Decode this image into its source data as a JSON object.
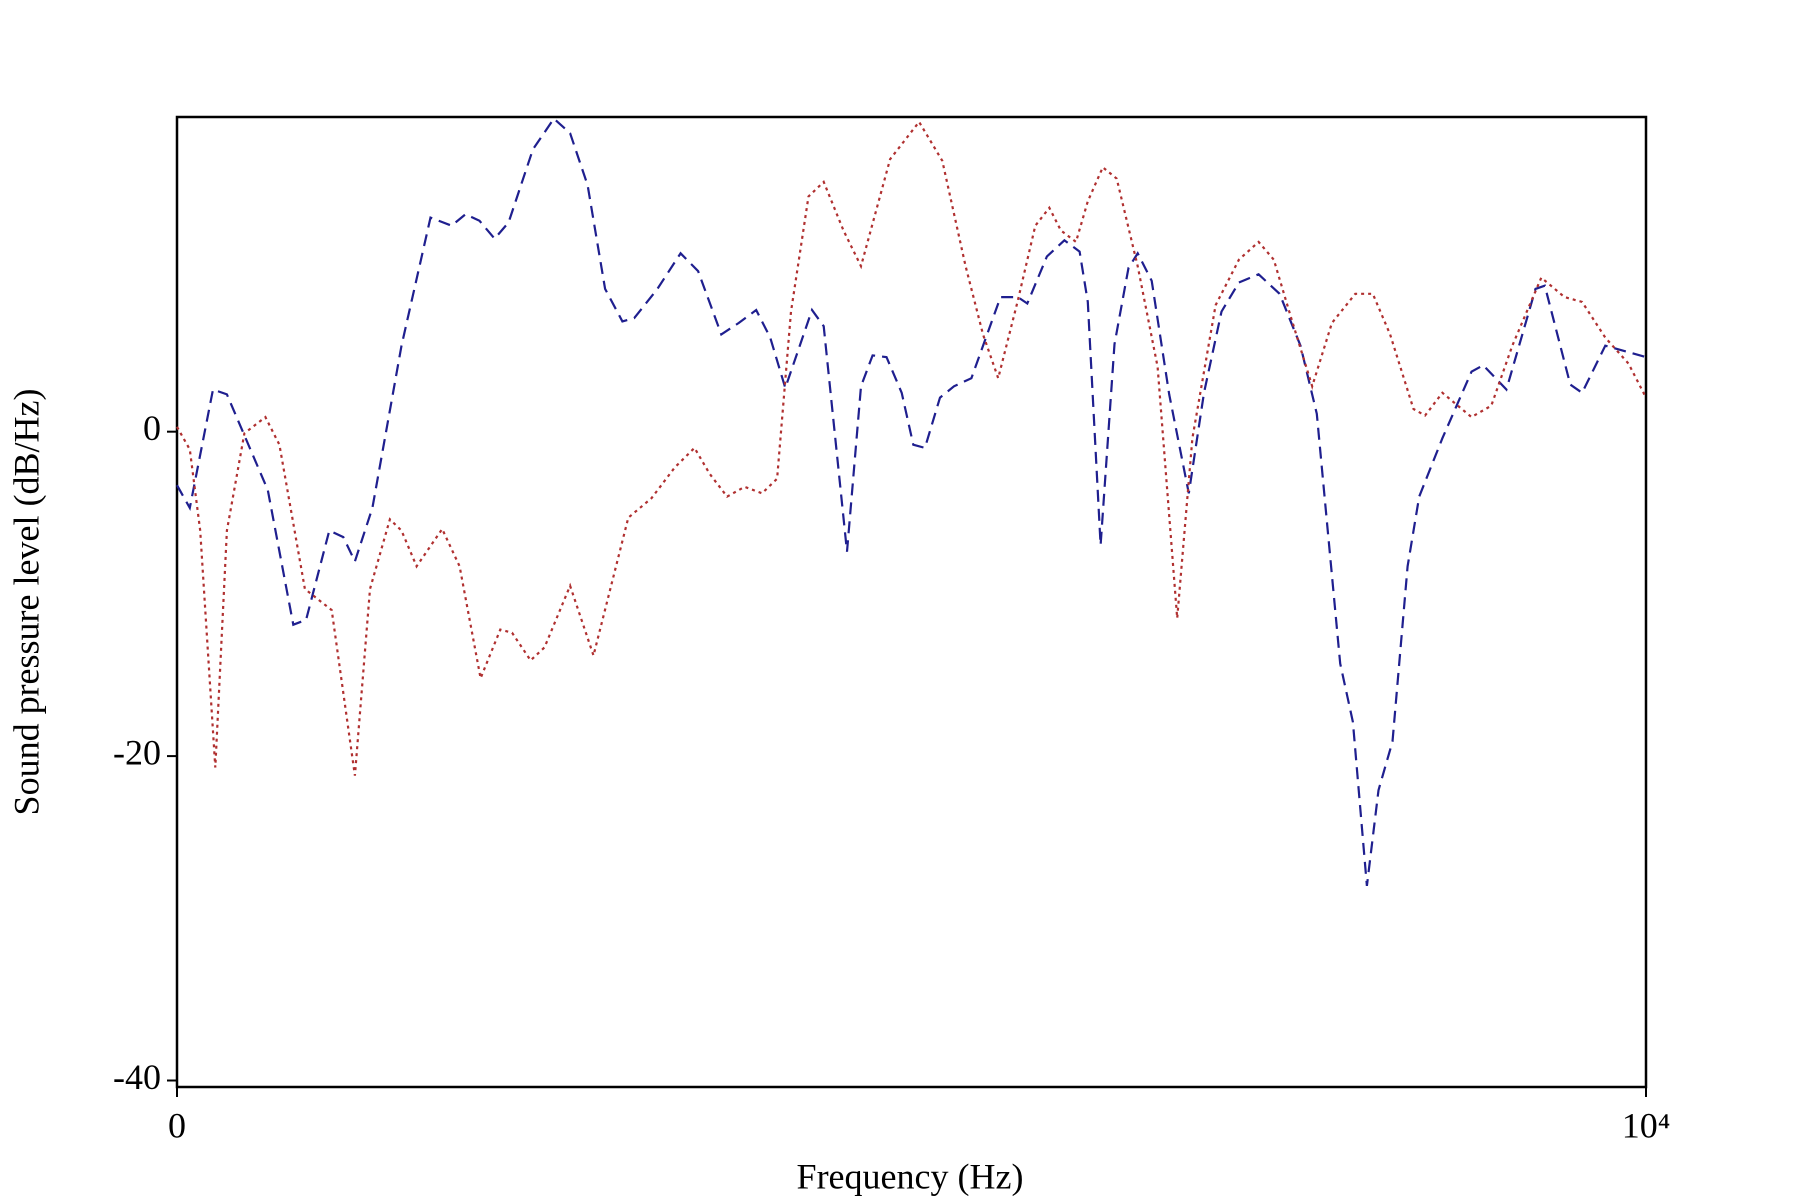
{
  "chart_data": {
    "type": "line",
    "xlabel": "Frequency (Hz)",
    "ylabel": "Sound pressure level (dB/Hz)",
    "xlim": [
      0,
      10000
    ],
    "xticks": [
      0,
      {
        "value": 10000,
        "label": "10⁴"
      }
    ],
    "ylim": [
      -40.4,
      19.4
    ],
    "yticks": [
      -40,
      -20,
      0
    ],
    "x": [],
    "series": [
      {
        "color": "#1f1f8f",
        "linestyle": "dashed",
        "x": [
          0,
          87,
          245,
          340,
          618,
          792,
          879,
          1037,
          1132,
          1211,
          1330,
          1528,
          1726,
          1869,
          1964,
          2059,
          2162,
          2257,
          2423,
          2566,
          2676,
          2795,
          2914,
          3032,
          3112,
          3270,
          3428,
          3547,
          3705,
          3824,
          3943,
          4038,
          4141,
          4323,
          4402,
          4561,
          4656,
          4735,
          4830,
          4933,
          5012,
          5091,
          5194,
          5289,
          5408,
          5606,
          5724,
          5788,
          5922,
          6041,
          6144,
          6200,
          6287,
          6382,
          6477,
          6540,
          6635,
          6754,
          6888,
          6991,
          7110,
          7229,
          7363,
          7506,
          7648,
          7759,
          7918,
          8005,
          8100,
          8179,
          8274,
          8377,
          8456,
          8614,
          8812,
          8892,
          9050,
          9248,
          9311,
          9485,
          9565,
          9723,
          9881,
          10000
        ],
        "values": [
          -3.3,
          -4.7,
          2.6,
          2.3,
          -3.6,
          -11.9,
          -11.6,
          -6.1,
          -6.5,
          -8.0,
          -4.7,
          5.3,
          13.2,
          12.7,
          13.4,
          13.0,
          11.9,
          12.9,
          17.4,
          19.3,
          18.4,
          15.2,
          8.8,
          6.8,
          7.0,
          8.8,
          11.0,
          9.9,
          6.0,
          6.7,
          7.5,
          5.8,
          2.7,
          7.5,
          6.5,
          -7.4,
          2.8,
          4.7,
          4.6,
          2.4,
          -0.8,
          -1.0,
          2.1,
          2.8,
          3.3,
          8.3,
          8.3,
          7.9,
          10.8,
          11.8,
          11.1,
          8.0,
          -7.0,
          5.4,
          10.1,
          11.0,
          9.3,
          2.3,
          -3.8,
          2.4,
          7.4,
          9.2,
          9.7,
          8.5,
          5.3,
          1.1,
          -14.3,
          -17.9,
          -28.0,
          -22.1,
          -19.1,
          -8.3,
          -4.0,
          -0.4,
          3.7,
          4.1,
          2.6,
          8.8,
          9.0,
          2.9,
          2.4,
          5.3,
          4.9,
          4.6
        ]
      },
      {
        "color": "#b03030",
        "linestyle": "dotted",
        "x": [
          0,
          87,
          158,
          261,
          340,
          459,
          602,
          697,
          871,
          1053,
          1211,
          1314,
          1449,
          1528,
          1631,
          1805,
          1924,
          2067,
          2201,
          2281,
          2407,
          2502,
          2676,
          2835,
          3072,
          3230,
          3389,
          3523,
          3626,
          3745,
          3864,
          3982,
          4085,
          4180,
          4299,
          4402,
          4537,
          4656,
          4854,
          5052,
          5210,
          5368,
          5487,
          5590,
          5724,
          5843,
          5938,
          6017,
          6120,
          6200,
          6302,
          6397,
          6540,
          6675,
          6809,
          6912,
          7070,
          7229,
          7363,
          7466,
          7585,
          7728,
          7862,
          8021,
          8140,
          8258,
          8417,
          8496,
          8614,
          8812,
          8947,
          9090,
          9287,
          9445,
          9565,
          9723,
          9881,
          10000
        ],
        "values": [
          0.3,
          -1.1,
          -6.1,
          -20.7,
          -6.1,
          -0.1,
          0.9,
          -0.8,
          -9.7,
          -11.0,
          -21.2,
          -9.7,
          -5.4,
          -6.1,
          -8.3,
          -6.0,
          -8.3,
          -15.2,
          -12.2,
          -12.4,
          -14.1,
          -13.3,
          -9.5,
          -13.8,
          -5.3,
          -4.1,
          -2.2,
          -1.0,
          -2.6,
          -4.0,
          -3.4,
          -3.8,
          -2.9,
          7.4,
          14.5,
          15.4,
          12.4,
          10.2,
          16.8,
          19.1,
          16.7,
          10.2,
          6.0,
          3.3,
          8.1,
          12.7,
          13.8,
          12.4,
          11.7,
          14.2,
          16.3,
          15.6,
          10.2,
          4.0,
          -11.5,
          -0.4,
          7.8,
          10.6,
          11.7,
          10.6,
          7.0,
          2.8,
          6.7,
          8.5,
          8.5,
          6.0,
          1.4,
          1.0,
          2.4,
          0.9,
          1.6,
          5.3,
          9.5,
          8.3,
          8.0,
          5.8,
          4.2,
          2.1
        ]
      }
    ]
  }
}
